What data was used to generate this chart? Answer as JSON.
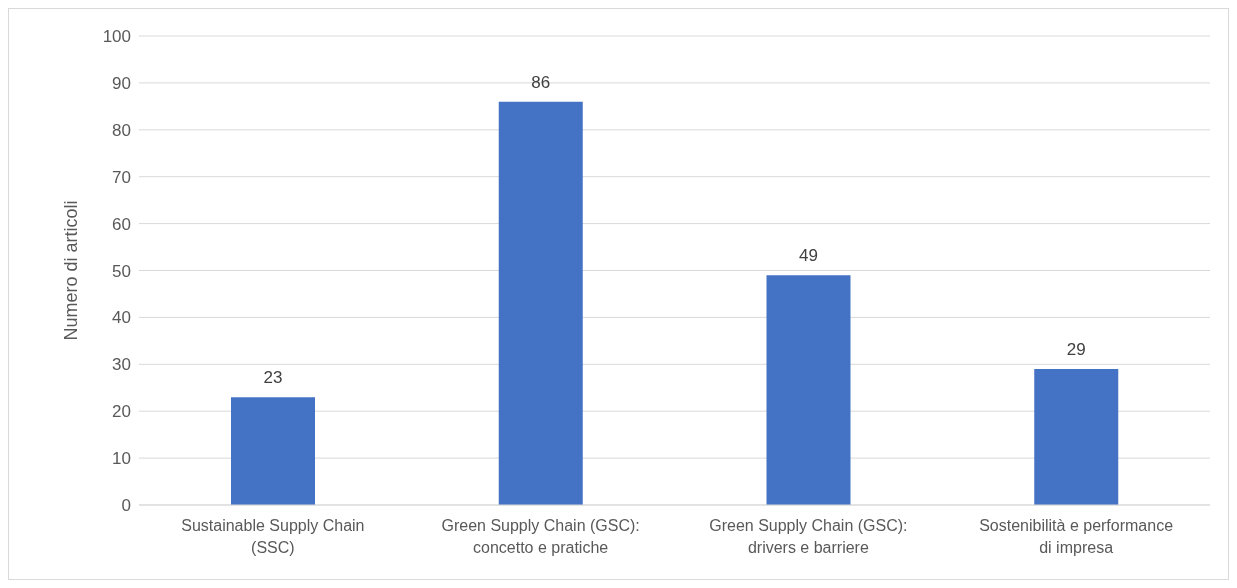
{
  "chart_data": {
    "type": "bar",
    "ylabel": "Numero di articoli",
    "categories": [
      "Sustainable Supply Chain (SSC)",
      "Green Supply Chain (GSC): concetto e pratiche",
      "Green Supply Chain (GSC): drivers e barriere",
      "Sostenibilità e performance di impresa"
    ],
    "values": [
      23,
      86,
      49,
      29
    ],
    "color": "#4472c4",
    "ylim": [
      0,
      100
    ],
    "yticks": [
      0,
      10,
      20,
      30,
      40,
      50,
      60,
      70,
      80,
      90,
      100
    ],
    "grid": "y",
    "data_labels": true
  }
}
